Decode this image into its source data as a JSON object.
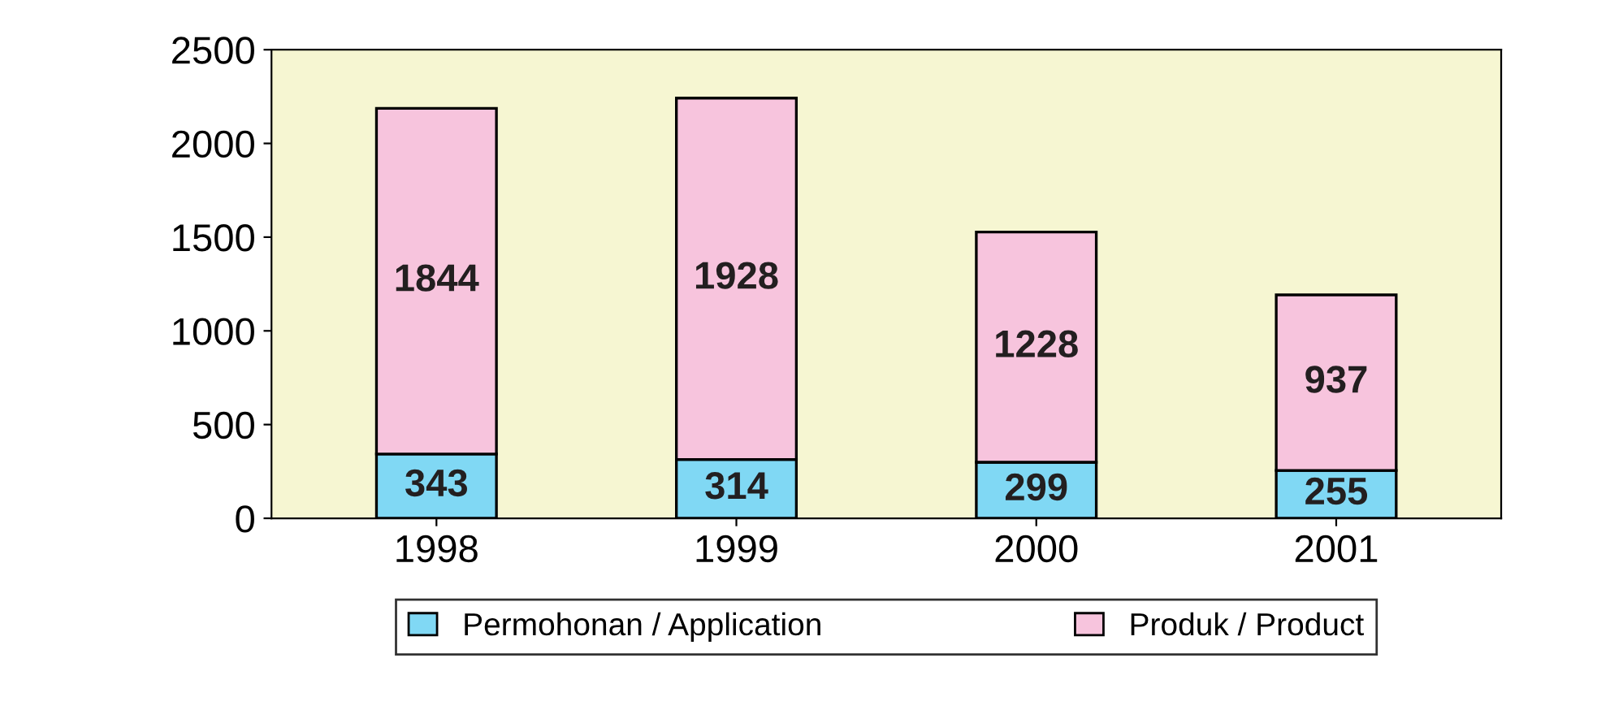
{
  "chart_data": {
    "type": "bar",
    "stacked": true,
    "categories": [
      "1998",
      "1999",
      "2000",
      "2001"
    ],
    "series": [
      {
        "name": "Permohonan / Application",
        "color": "#80d8f4",
        "values": [
          343,
          314,
          299,
          255
        ]
      },
      {
        "name": "Produk / Product",
        "color": "#f7c4dd",
        "values": [
          1844,
          1928,
          1228,
          937
        ]
      }
    ],
    "ylim": [
      0,
      2500
    ],
    "yticks": [
      0,
      500,
      1000,
      1500,
      2000,
      2500
    ],
    "data_labels": true,
    "grid": false,
    "legend": "bottom"
  }
}
